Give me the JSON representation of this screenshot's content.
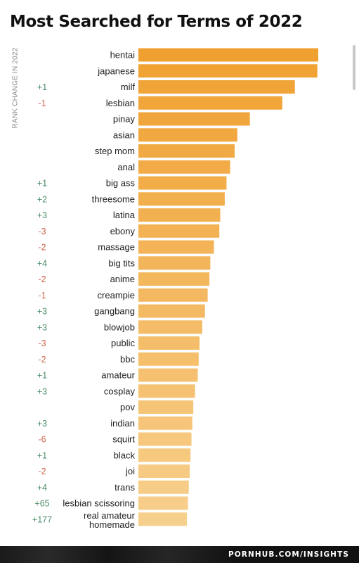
{
  "title": "Most Searched for Terms of 2022",
  "footer": {
    "source": "PORNHUB.COM/INSIGHTS"
  },
  "colors": {
    "bar_top": "#f0a030",
    "bar_bottom": "#f7cf8c",
    "positive": "#4f8f6a",
    "negative": "#d0654a",
    "text": "#222222"
  },
  "chart_data": {
    "type": "bar",
    "orientation": "horizontal",
    "title": "Most Searched for Terms of 2022",
    "ylabel": "RANK CHANGE IN 2022",
    "categories": [
      "hentai",
      "japanese",
      "milf",
      "lesbian",
      "pinay",
      "asian",
      "step mom",
      "anal",
      "big ass",
      "threesome",
      "latina",
      "ebony",
      "massage",
      "big tits",
      "anime",
      "creampie",
      "gangbang",
      "blowjob",
      "public",
      "bbc",
      "amateur",
      "cosplay",
      "pov",
      "indian",
      "squirt",
      "black",
      "joi",
      "trans",
      "lesbian scissoring",
      "real amateur homemade"
    ],
    "values": [
      100,
      99.5,
      87,
      80,
      62,
      55,
      53.5,
      51,
      49,
      48,
      45.5,
      45,
      42,
      40,
      39.5,
      38.5,
      37,
      35.5,
      34,
      33.5,
      33,
      31.5,
      30.5,
      30,
      29.5,
      29,
      28.5,
      28,
      27.5,
      27
    ],
    "rank_change": [
      "",
      "",
      "+1",
      "-1",
      "",
      "",
      "",
      "",
      "+1",
      "+2",
      "+3",
      "-3",
      "-2",
      "+4",
      "-2",
      "-1",
      "+3",
      "+3",
      "-3",
      "-2",
      "+1",
      "+3",
      "",
      "+3",
      "-6",
      "+1",
      "-2",
      "+4",
      "+65",
      "+177"
    ],
    "xlim": [
      0,
      100
    ],
    "grid": false,
    "legend": "none"
  }
}
